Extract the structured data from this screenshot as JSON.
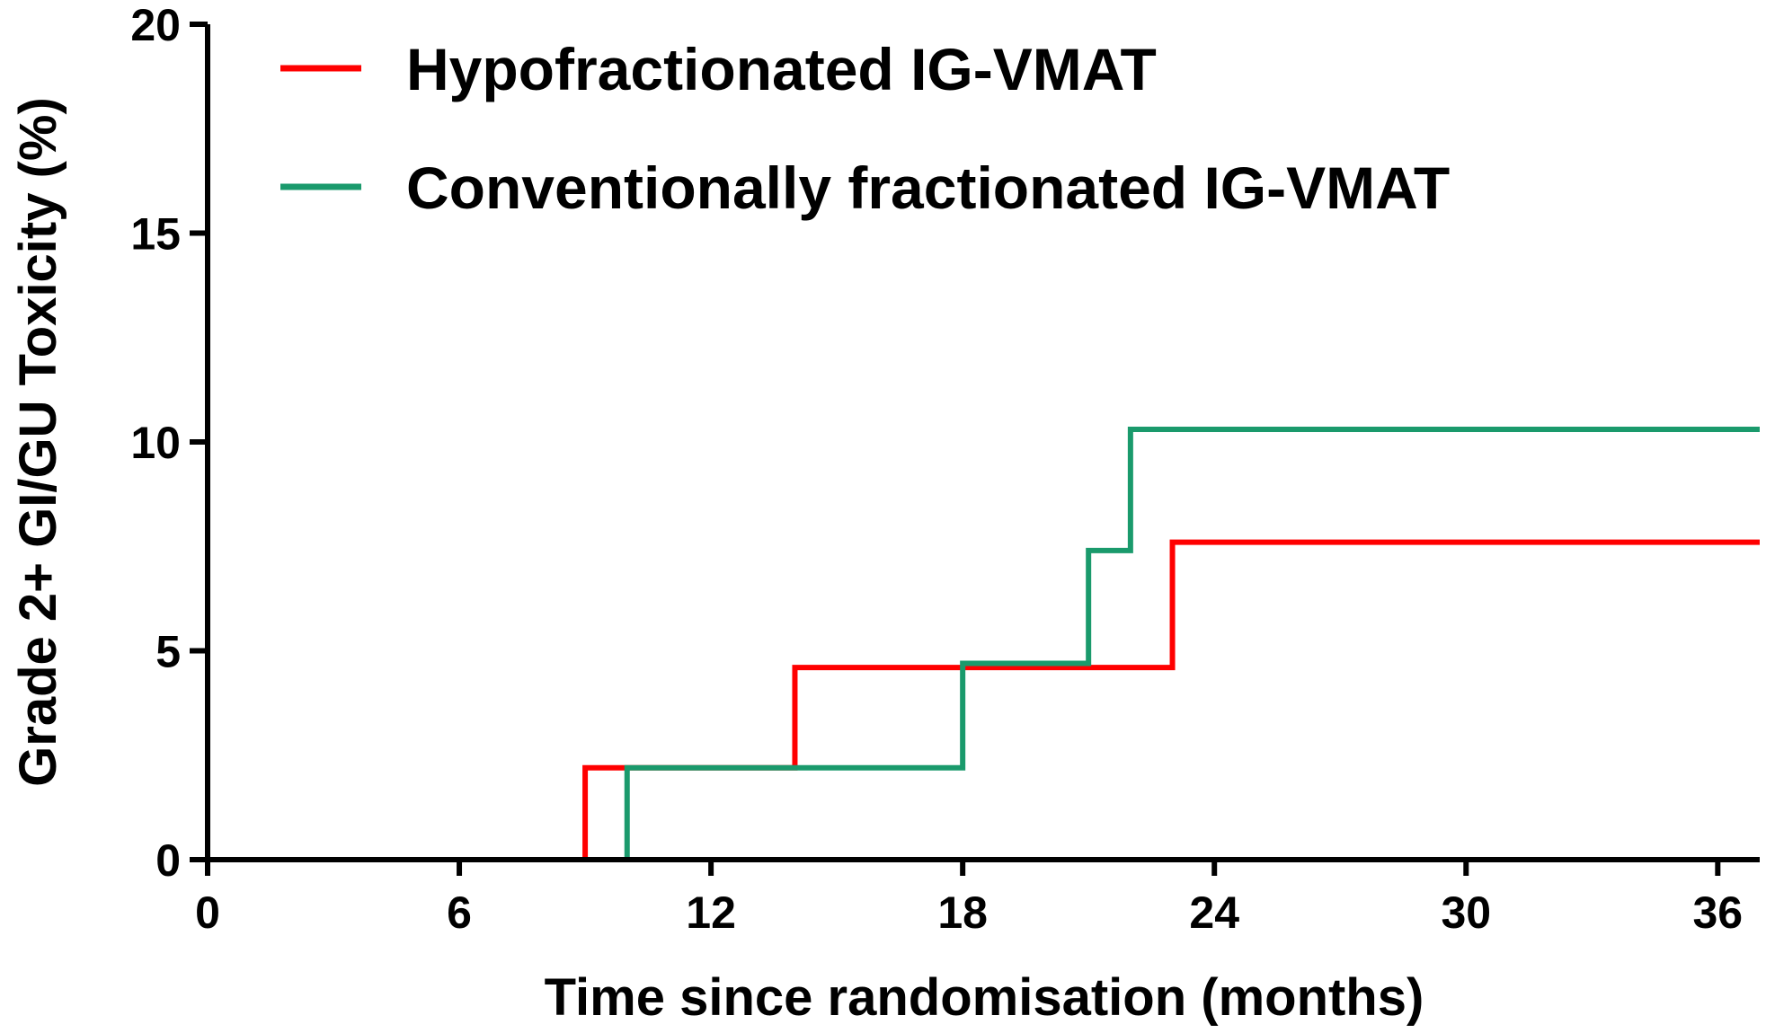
{
  "chart_data": {
    "type": "line",
    "step": true,
    "xlabel": "Time since randomisation (months)",
    "ylabel": "Grade 2+ GI/GU Toxicity (%)",
    "xlim": [
      0,
      37
    ],
    "ylim": [
      0,
      20
    ],
    "xticks": [
      "0",
      "6",
      "12",
      "18",
      "24",
      "30",
      "36"
    ],
    "yticks": [
      "0",
      "5",
      "10",
      "15",
      "20"
    ],
    "legend_position": "top-left",
    "series": [
      {
        "name": "Hypofractionated IG-VMAT",
        "color": "#ff0000",
        "x": [
          0,
          9,
          14,
          23,
          37
        ],
        "y": [
          0,
          2.2,
          4.6,
          7.6,
          7.6
        ]
      },
      {
        "name": "Conventionally fractionated IG-VMAT",
        "color": "#1a9a6c",
        "x": [
          0,
          10,
          18,
          21,
          22,
          37
        ],
        "y": [
          0,
          2.2,
          4.7,
          7.4,
          10.3,
          10.3
        ]
      }
    ]
  }
}
